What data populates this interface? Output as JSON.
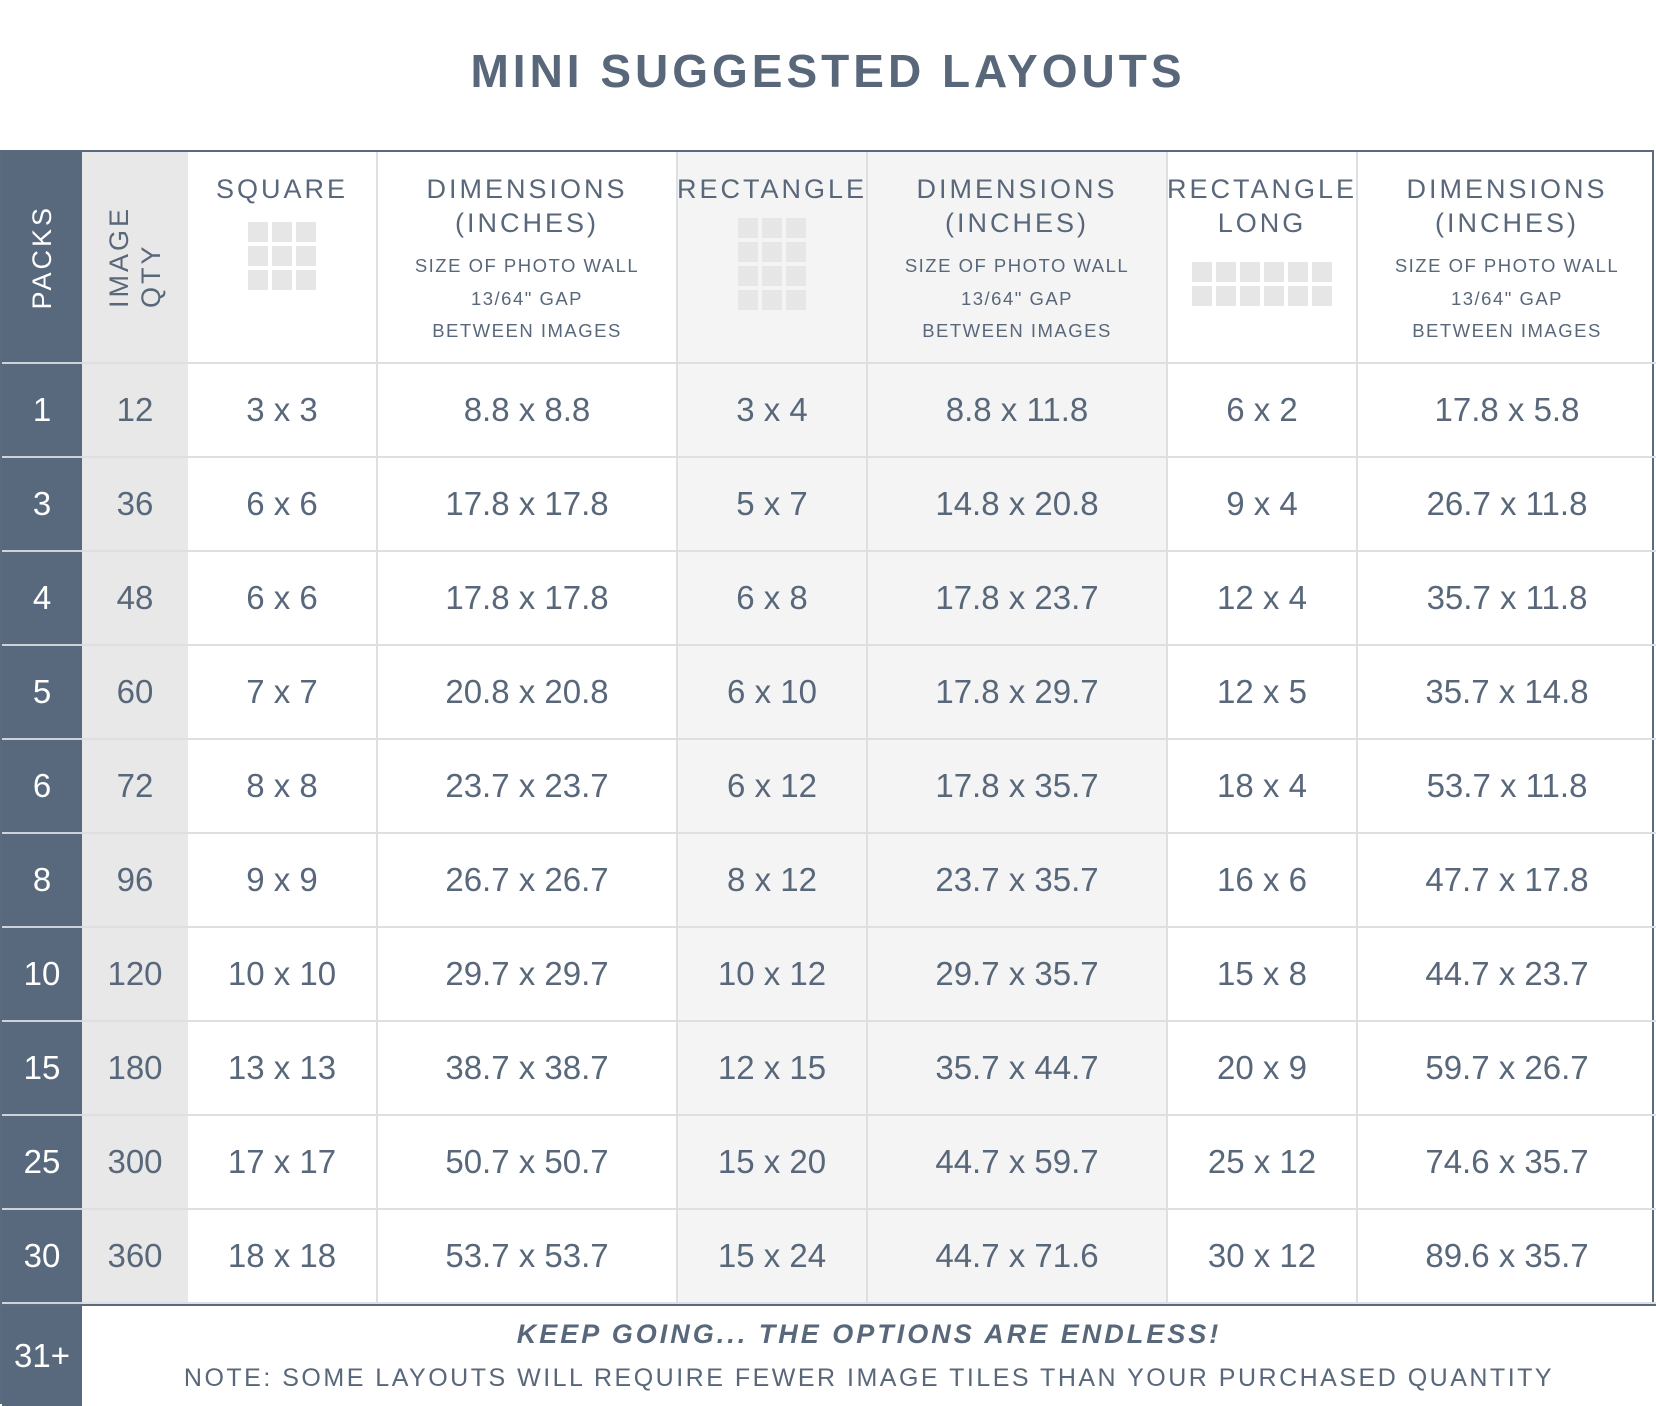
{
  "title": "MINI SUGGESTED LAYOUTS",
  "headers": {
    "packs": "PACKS",
    "image_qty": "IMAGE\nQTY",
    "square": "SQUARE",
    "rectangle": "RECTANGLE",
    "rectangle_long": "RECTANGLE\nLONG",
    "dimensions": "DIMENSIONS\n(INCHES)",
    "dimensions_sub": "SIZE OF PHOTO WALL\n13/64\" GAP\nBETWEEN IMAGES"
  },
  "rows": [
    {
      "packs": "1",
      "qty": "12",
      "square": "3 x 3",
      "square_dim": "8.8 x 8.8",
      "rect": "3 x 4",
      "rect_dim": "8.8 x 11.8",
      "long": "6 x 2",
      "long_dim": "17.8 x 5.8"
    },
    {
      "packs": "3",
      "qty": "36",
      "square": "6 x 6",
      "square_dim": "17.8 x 17.8",
      "rect": "5 x 7",
      "rect_dim": "14.8 x 20.8",
      "long": "9 x 4",
      "long_dim": "26.7 x 11.8"
    },
    {
      "packs": "4",
      "qty": "48",
      "square": "6 x 6",
      "square_dim": "17.8 x 17.8",
      "rect": "6 x 8",
      "rect_dim": "17.8 x 23.7",
      "long": "12 x 4",
      "long_dim": "35.7 x 11.8"
    },
    {
      "packs": "5",
      "qty": "60",
      "square": "7 x 7",
      "square_dim": "20.8 x 20.8",
      "rect": "6 x 10",
      "rect_dim": "17.8 x 29.7",
      "long": "12 x 5",
      "long_dim": "35.7 x 14.8"
    },
    {
      "packs": "6",
      "qty": "72",
      "square": "8 x 8",
      "square_dim": "23.7 x 23.7",
      "rect": "6 x 12",
      "rect_dim": "17.8 x 35.7",
      "long": "18 x 4",
      "long_dim": "53.7 x 11.8"
    },
    {
      "packs": "8",
      "qty": "96",
      "square": "9 x 9",
      "square_dim": "26.7 x 26.7",
      "rect": "8 x 12",
      "rect_dim": "23.7 x 35.7",
      "long": "16 x 6",
      "long_dim": "47.7 x 17.8"
    },
    {
      "packs": "10",
      "qty": "120",
      "square": "10 x 10",
      "square_dim": "29.7 x 29.7",
      "rect": "10 x 12",
      "rect_dim": "29.7 x 35.7",
      "long": "15 x 8",
      "long_dim": "44.7 x 23.7"
    },
    {
      "packs": "15",
      "qty": "180",
      "square": "13 x 13",
      "square_dim": "38.7 x 38.7",
      "rect": "12 x 15",
      "rect_dim": "35.7 x 44.7",
      "long": "20 x 9",
      "long_dim": "59.7 x 26.7"
    },
    {
      "packs": "25",
      "qty": "300",
      "square": "17 x 17",
      "square_dim": "50.7 x 50.7",
      "rect": "15 x 20",
      "rect_dim": "44.7 x 59.7",
      "long": "25 x 12",
      "long_dim": "74.6 x 35.7"
    },
    {
      "packs": "30",
      "qty": "360",
      "square": "18 x 18",
      "square_dim": "53.7 x 53.7",
      "rect": "15 x 24",
      "rect_dim": "44.7 x 71.6",
      "long": "30 x 12",
      "long_dim": "89.6 x 35.7"
    }
  ],
  "footer": {
    "packs": "31+",
    "line1": "KEEP GOING... THE OPTIONS ARE ENDLESS!",
    "line2": "NOTE: SOME LAYOUTS WILL REQUIRE FEWER IMAGE TILES THAN YOUR PURCHASED QUANTITY"
  },
  "colors": {
    "accent": "#59697d",
    "text": "#58677a",
    "qty_column": "#e8e8e8",
    "shaded_column": "#f4f4f4",
    "tile": "#e6e6e6"
  }
}
